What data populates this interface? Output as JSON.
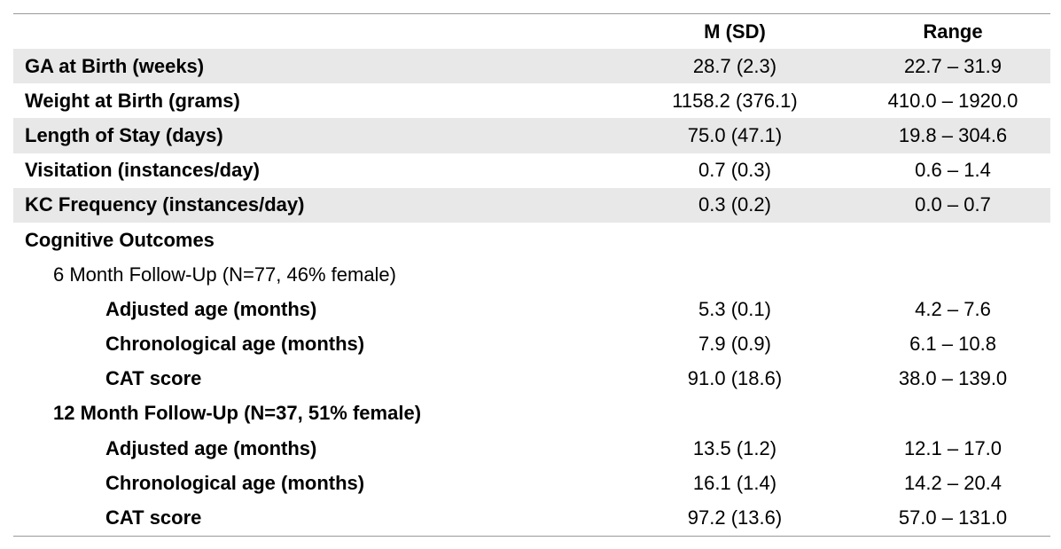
{
  "columns": {
    "label": "",
    "m_sd": "M (SD)",
    "range": "Range"
  },
  "rows": [
    {
      "label": "GA at Birth (weeks)",
      "m_sd": "28.7 (2.3)",
      "range": "22.7 – 31.9"
    },
    {
      "label": "Weight at Birth (grams)",
      "m_sd": "1158.2 (376.1)",
      "range": "410.0 – 1920.0"
    },
    {
      "label": "Length of Stay (days)",
      "m_sd": "75.0 (47.1)",
      "range": "19.8 – 304.6"
    },
    {
      "label": "Visitation (instances/day)",
      "m_sd": "0.7 (0.3)",
      "range": "0.6 – 1.4"
    },
    {
      "label": "KC Frequency (instances/day)",
      "m_sd": "0.3 (0.2)",
      "range": "0.0 – 0.7"
    },
    {
      "label": "Cognitive Outcomes",
      "m_sd": "",
      "range": ""
    },
    {
      "label": "6 Month Follow-Up (N=77, 46% female)",
      "m_sd": "",
      "range": ""
    },
    {
      "label": "Adjusted age (months)",
      "m_sd": "5.3 (0.1)",
      "range": "4.2 – 7.6"
    },
    {
      "label": "Chronological age (months)",
      "m_sd": "7.9 (0.9)",
      "range": "6.1 – 10.8"
    },
    {
      "label": "CAT score",
      "m_sd": "91.0 (18.6)",
      "range": "38.0 – 139.0"
    },
    {
      "label": "12 Month Follow-Up (N=37, 51% female)",
      "m_sd": "",
      "range": ""
    },
    {
      "label": "Adjusted age (months)",
      "m_sd": "13.5 (1.2)",
      "range": "12.1 – 17.0"
    },
    {
      "label": "Chronological age (months)",
      "m_sd": "16.1 (1.4)",
      "range": "14.2 – 20.4"
    },
    {
      "label": "CAT score",
      "m_sd": "97.2 (13.6)",
      "range": "57.0 – 131.0"
    }
  ],
  "colors": {
    "shaded_row": "#e8e8e8",
    "rule": "#9a9a9a"
  }
}
